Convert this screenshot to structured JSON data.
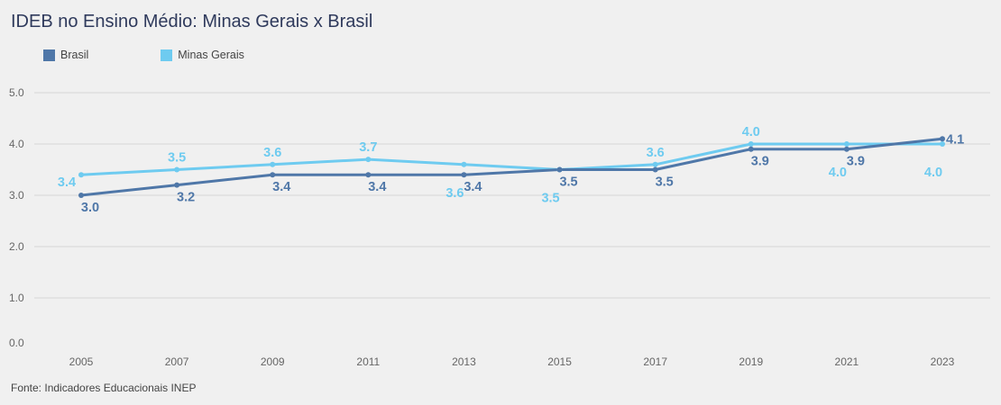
{
  "colors": {
    "brasil": "#4f77a8",
    "minas": "#6ecbf0",
    "grid": "#d6d6d6"
  },
  "source": "Fonte: Indicadores Educacionais INEP",
  "chart_data": {
    "type": "line",
    "title": "IDEB no Ensino Médio: Minas Gerais x Brasil",
    "xlabel": "",
    "ylabel": "",
    "categories": [
      "2005",
      "2007",
      "2009",
      "2011",
      "2013",
      "2015",
      "2017",
      "2019",
      "2021",
      "2023"
    ],
    "ylim": [
      0,
      5
    ],
    "yticks": [
      "0.0",
      "1.0",
      "2.0",
      "3.0",
      "4.0",
      "5.0"
    ],
    "grid": true,
    "legend": "top-left",
    "series": [
      {
        "name": "Brasil",
        "color": "#4f77a8",
        "values": [
          3.0,
          3.2,
          3.4,
          3.4,
          3.4,
          3.5,
          3.5,
          3.9,
          3.9,
          4.1
        ],
        "labels": [
          "3.0",
          "3.2",
          "3.4",
          "3.4",
          "3.4",
          "3.5",
          "3.5",
          "3.9",
          "3.9",
          "4.1"
        ]
      },
      {
        "name": "Minas Gerais",
        "color": "#6ecbf0",
        "values": [
          3.4,
          3.5,
          3.6,
          3.7,
          3.6,
          3.5,
          3.6,
          4.0,
          4.0,
          4.0
        ],
        "labels": [
          "3.4",
          "3.5",
          "3.6",
          "3.7",
          "3.6",
          "3.5",
          "3.6",
          "4.0",
          "4.0",
          "4.0"
        ]
      }
    ]
  }
}
